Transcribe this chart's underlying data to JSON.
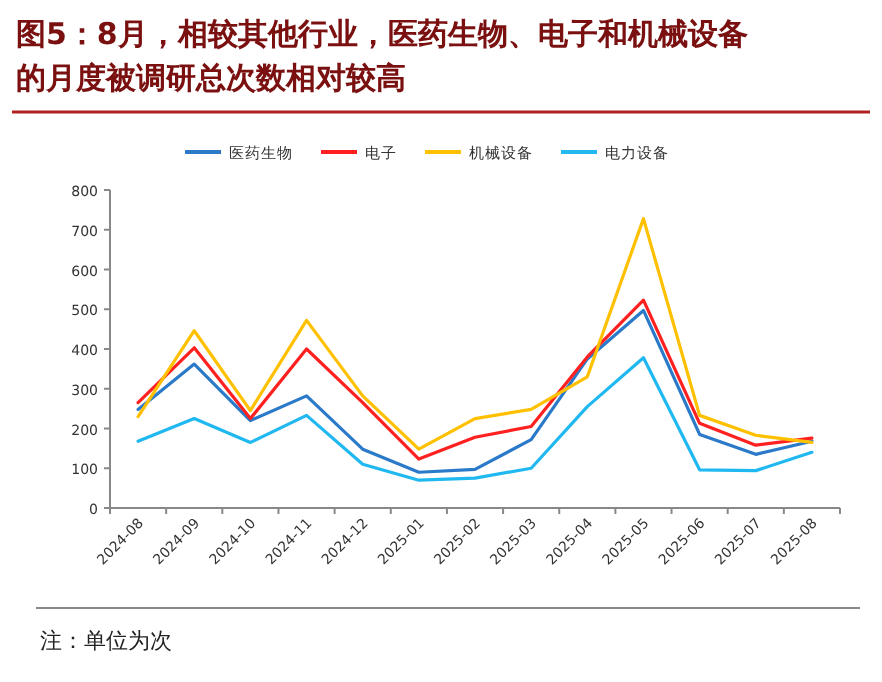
{
  "chart_data": {
    "type": "line",
    "title": "图5：8月，相较其他行业，医药生物、电子和机械设备的月度被调研总次数相对较高",
    "categories": [
      "2024-08",
      "2024-09",
      "2024-10",
      "2024-11",
      "2024-12",
      "2025-01",
      "2025-02",
      "2025-03",
      "2025-04",
      "2025-05",
      "2025-06",
      "2025-07",
      "2025-08"
    ],
    "series": [
      {
        "name": "医药生物",
        "color": "#2a7ac9",
        "values": [
          248,
          362,
          220,
          282,
          148,
          90,
          97,
          172,
          375,
          497,
          185,
          135,
          168
        ]
      },
      {
        "name": "电子",
        "color": "#ff2020",
        "values": [
          265,
          403,
          225,
          400,
          265,
          123,
          178,
          205,
          380,
          523,
          213,
          158,
          176
        ]
      },
      {
        "name": "机械设备",
        "color": "#ffc000",
        "values": [
          230,
          446,
          245,
          472,
          282,
          148,
          225,
          248,
          330,
          728,
          233,
          183,
          165
        ]
      },
      {
        "name": "电力设备",
        "color": "#20b8f0",
        "values": [
          168,
          225,
          165,
          233,
          110,
          70,
          75,
          100,
          255,
          378,
          96,
          94,
          140
        ]
      }
    ],
    "ylim": [
      0,
      800
    ],
    "yticks": [
      0,
      100,
      200,
      300,
      400,
      500,
      600,
      700,
      800
    ],
    "grid": false,
    "legend": "top",
    "marker": "none",
    "line_style": "solid",
    "annotations": [
      "注：单位为次"
    ]
  }
}
